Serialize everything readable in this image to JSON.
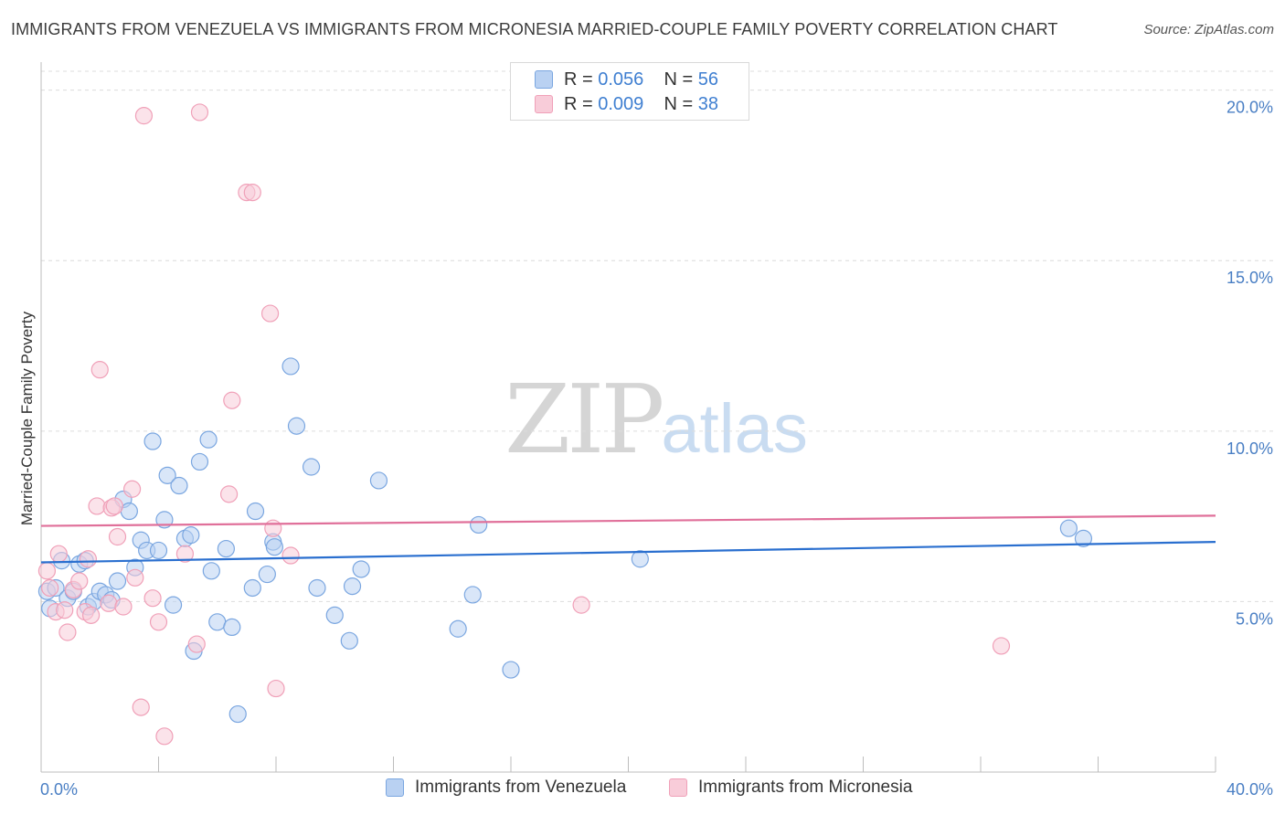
{
  "chart_data": {
    "type": "scatter",
    "title": "IMMIGRANTS FROM VENEZUELA VS IMMIGRANTS FROM MICRONESIA MARRIED-COUPLE FAMILY POVERTY CORRELATION CHART",
    "source": "Source: ZipAtlas.com",
    "xlabel": "",
    "ylabel": "Married-Couple Family Poverty",
    "xlim": [
      0,
      40
    ],
    "ylim": [
      0,
      20.5
    ],
    "x_tick_labels": [
      "0.0%",
      "40.0%"
    ],
    "y_ticks": [
      {
        "value": 5,
        "label": "5.0%"
      },
      {
        "value": 10,
        "label": "10.0%"
      },
      {
        "value": 15,
        "label": "15.0%"
      },
      {
        "value": 20,
        "label": "20.0%"
      }
    ],
    "grid": true,
    "watermark": {
      "part1": "ZIP",
      "part2": "atlas"
    },
    "legend_stats": [
      {
        "r_label": "R = ",
        "r_value": "0.056",
        "n_label": "N = ",
        "n_value": "56"
      },
      {
        "r_label": "R = ",
        "r_value": "0.009",
        "n_label": "N = ",
        "n_value": "38"
      }
    ],
    "series": [
      {
        "name": "Immigrants from Venezuela",
        "color": "#7aa6e0",
        "fill": "#b9d1f2",
        "line_color": "#2a6fcf",
        "trend": [
          {
            "x": 0,
            "y": 6.15
          },
          {
            "x": 40,
            "y": 6.75
          }
        ],
        "points": [
          {
            "x": 0.2,
            "y": 5.3
          },
          {
            "x": 0.3,
            "y": 4.8
          },
          {
            "x": 0.5,
            "y": 5.4
          },
          {
            "x": 0.7,
            "y": 6.2
          },
          {
            "x": 0.9,
            "y": 5.1
          },
          {
            "x": 1.1,
            "y": 5.3
          },
          {
            "x": 1.3,
            "y": 6.1
          },
          {
            "x": 1.5,
            "y": 6.2
          },
          {
            "x": 1.6,
            "y": 4.85
          },
          {
            "x": 1.8,
            "y": 5.0
          },
          {
            "x": 2.0,
            "y": 5.3
          },
          {
            "x": 2.2,
            "y": 5.2
          },
          {
            "x": 2.4,
            "y": 5.05
          },
          {
            "x": 2.6,
            "y": 5.6
          },
          {
            "x": 2.8,
            "y": 8.0
          },
          {
            "x": 3.0,
            "y": 7.65
          },
          {
            "x": 3.2,
            "y": 6.0
          },
          {
            "x": 3.4,
            "y": 6.8
          },
          {
            "x": 3.6,
            "y": 6.5
          },
          {
            "x": 3.8,
            "y": 9.7
          },
          {
            "x": 4.0,
            "y": 6.5
          },
          {
            "x": 4.2,
            "y": 7.4
          },
          {
            "x": 4.3,
            "y": 8.7
          },
          {
            "x": 4.5,
            "y": 4.9
          },
          {
            "x": 4.7,
            "y": 8.4
          },
          {
            "x": 4.9,
            "y": 6.85
          },
          {
            "x": 5.1,
            "y": 6.95
          },
          {
            "x": 5.2,
            "y": 3.55
          },
          {
            "x": 5.4,
            "y": 9.1
          },
          {
            "x": 5.7,
            "y": 9.75
          },
          {
            "x": 5.8,
            "y": 5.9
          },
          {
            "x": 6.0,
            "y": 4.4
          },
          {
            "x": 6.3,
            "y": 6.55
          },
          {
            "x": 6.5,
            "y": 4.25
          },
          {
            "x": 6.7,
            "y": 1.7
          },
          {
            "x": 7.2,
            "y": 5.4
          },
          {
            "x": 7.3,
            "y": 7.65
          },
          {
            "x": 7.7,
            "y": 5.8
          },
          {
            "x": 7.9,
            "y": 6.75
          },
          {
            "x": 7.95,
            "y": 6.6
          },
          {
            "x": 8.5,
            "y": 11.9
          },
          {
            "x": 8.7,
            "y": 10.15
          },
          {
            "x": 9.2,
            "y": 8.95
          },
          {
            "x": 9.4,
            "y": 5.4
          },
          {
            "x": 10.0,
            "y": 4.6
          },
          {
            "x": 10.5,
            "y": 3.85
          },
          {
            "x": 10.6,
            "y": 5.45
          },
          {
            "x": 10.9,
            "y": 5.95
          },
          {
            "x": 11.5,
            "y": 8.55
          },
          {
            "x": 14.2,
            "y": 4.2
          },
          {
            "x": 14.7,
            "y": 5.2
          },
          {
            "x": 14.9,
            "y": 7.25
          },
          {
            "x": 16.0,
            "y": 3.0
          },
          {
            "x": 20.4,
            "y": 6.25
          },
          {
            "x": 35.0,
            "y": 7.15
          },
          {
            "x": 35.5,
            "y": 6.85
          }
        ]
      },
      {
        "name": "Immigrants from Micronesia",
        "color": "#f0a0b8",
        "fill": "#f8ccd9",
        "line_color": "#e0709a",
        "trend": [
          {
            "x": 0,
            "y": 7.22
          },
          {
            "x": 40,
            "y": 7.52
          }
        ],
        "points": [
          {
            "x": 0.2,
            "y": 5.9
          },
          {
            "x": 0.3,
            "y": 5.4
          },
          {
            "x": 0.5,
            "y": 4.7
          },
          {
            "x": 0.6,
            "y": 6.4
          },
          {
            "x": 0.8,
            "y": 4.75
          },
          {
            "x": 0.9,
            "y": 4.1
          },
          {
            "x": 1.1,
            "y": 5.35
          },
          {
            "x": 1.3,
            "y": 5.6
          },
          {
            "x": 1.5,
            "y": 4.7
          },
          {
            "x": 1.6,
            "y": 6.25
          },
          {
            "x": 1.7,
            "y": 4.6
          },
          {
            "x": 1.9,
            "y": 7.8
          },
          {
            "x": 2.0,
            "y": 11.8
          },
          {
            "x": 2.3,
            "y": 4.95
          },
          {
            "x": 2.4,
            "y": 7.75
          },
          {
            "x": 2.5,
            "y": 7.8
          },
          {
            "x": 2.6,
            "y": 6.9
          },
          {
            "x": 2.8,
            "y": 4.85
          },
          {
            "x": 3.1,
            "y": 8.3
          },
          {
            "x": 3.2,
            "y": 5.7
          },
          {
            "x": 3.4,
            "y": 1.9
          },
          {
            "x": 3.5,
            "y": 19.25
          },
          {
            "x": 3.8,
            "y": 5.1
          },
          {
            "x": 4.0,
            "y": 4.4
          },
          {
            "x": 4.2,
            "y": 1.05
          },
          {
            "x": 4.9,
            "y": 6.4
          },
          {
            "x": 5.3,
            "y": 3.75
          },
          {
            "x": 5.4,
            "y": 19.35
          },
          {
            "x": 6.4,
            "y": 8.15
          },
          {
            "x": 6.5,
            "y": 10.9
          },
          {
            "x": 7.0,
            "y": 17.0
          },
          {
            "x": 7.2,
            "y": 17.0
          },
          {
            "x": 7.8,
            "y": 13.45
          },
          {
            "x": 7.9,
            "y": 7.15
          },
          {
            "x": 8.0,
            "y": 2.45
          },
          {
            "x": 8.5,
            "y": 6.35
          },
          {
            "x": 18.4,
            "y": 4.9
          },
          {
            "x": 32.7,
            "y": 3.7
          }
        ]
      }
    ]
  }
}
